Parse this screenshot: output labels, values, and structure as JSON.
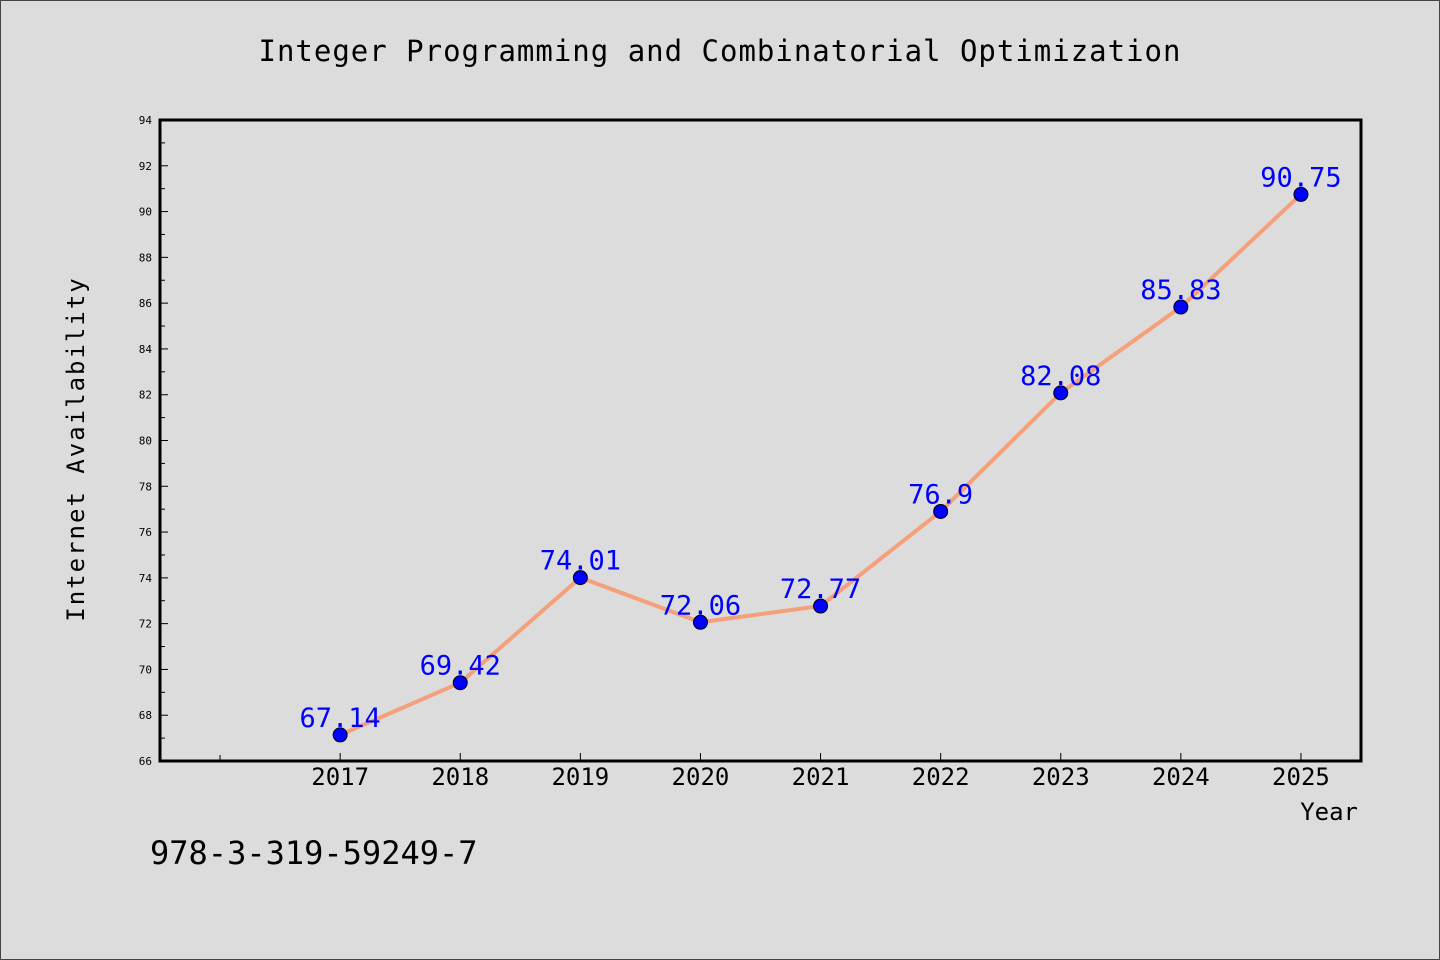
{
  "title": "Integer Programming and Combinatorial Optimization",
  "footer_text": "978-3-319-59249-7",
  "chart_data": {
    "type": "line",
    "title": "Integer Programming and Combinatorial Optimization",
    "xlabel": "Year",
    "ylabel": "Internet Availability",
    "x": [
      2017,
      2018,
      2019,
      2020,
      2021,
      2022,
      2023,
      2024,
      2025
    ],
    "series": [
      {
        "values": [
          67.14,
          69.42,
          74.01,
          72.06,
          72.77,
          76.9,
          82.08,
          85.83,
          90.75
        ],
        "labels": [
          "67.14",
          "69.42",
          "74.01",
          "72.06",
          "72.77",
          "76.9",
          "82.08",
          "85.83",
          "90.75"
        ]
      }
    ],
    "ylim": [
      66,
      94
    ],
    "yticks": [
      66,
      68,
      70,
      72,
      74,
      76,
      78,
      80,
      82,
      84,
      86,
      88,
      90,
      92,
      94
    ],
    "xlim": [
      2015.5,
      2025.5
    ],
    "grid": false,
    "line_color": "#f4a07a",
    "marker_color": "#0000ff",
    "label_color": "#0000ff"
  }
}
